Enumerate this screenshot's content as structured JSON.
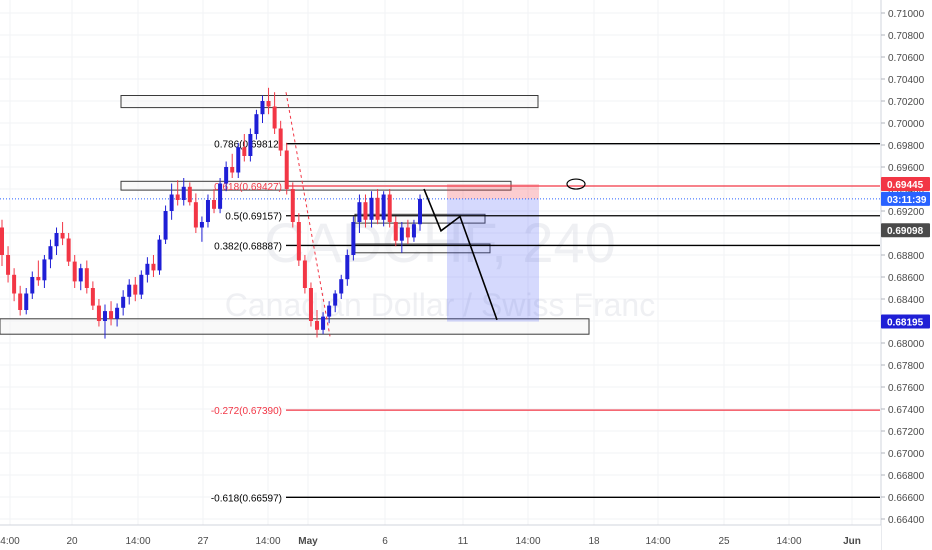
{
  "chart_data": {
    "type": "candlestick",
    "watermark": {
      "symbol": "CADCHF, 240",
      "name": "Canadian Dollar / Swiss Franc"
    },
    "ylim": [
      0.6635,
      0.7125
    ],
    "y_ticks": [
      "0.71000",
      "0.70800",
      "0.70600",
      "0.70400",
      "0.70200",
      "0.70000",
      "0.69800",
      "0.69600",
      "0.69400",
      "0.69200",
      "0.69000",
      "0.68800",
      "0.68600",
      "0.68400",
      "0.68200",
      "0.68000",
      "0.67800",
      "0.67600",
      "0.67400",
      "0.67200",
      "0.67000",
      "0.66800",
      "0.66600",
      "0.66400"
    ],
    "x_ticks": [
      "4:00",
      "20",
      "14:00",
      "27",
      "14:00",
      "May",
      "6",
      "11",
      "14:00",
      "18",
      "14:00",
      "25",
      "14:00",
      "Jun"
    ],
    "price_labels": [
      {
        "text": "0.69445",
        "value": 0.69445,
        "color": "#f23645"
      },
      {
        "text": "03:11:39",
        "value": 0.6931,
        "color": "#2962ff"
      },
      {
        "text": "0.69098",
        "value": 0.69098,
        "color": "#4a4a4a"
      },
      {
        "text": "0.68195",
        "value": 0.68195,
        "color": "#1f1fd6"
      }
    ],
    "fib_levels": [
      {
        "label": "0.786(0.69812)",
        "value": 0.69812,
        "color": "#000000"
      },
      {
        "label": "0.618(0.69427)",
        "value": 0.69427,
        "color": "#f23645"
      },
      {
        "label": "0.5(0.69157)",
        "value": 0.69157,
        "color": "#000000"
      },
      {
        "label": "0.382(0.68887)",
        "value": 0.68887,
        "color": "#000000"
      },
      {
        "label": "-0.272(0.67390)",
        "value": 0.6739,
        "color": "#f23645"
      },
      {
        "label": "-0.618(0.66597)",
        "value": 0.66597,
        "color": "#000000"
      }
    ],
    "zones": [
      {
        "name": "resistance-top",
        "y1": 0.7025,
        "y2": 0.7014
      },
      {
        "name": "resistance-mid",
        "y1": 0.6947,
        "y2": 0.6939
      },
      {
        "name": "range-upper",
        "y1": 0.6917,
        "y2": 0.6909
      },
      {
        "name": "range-lower",
        "y1": 0.689,
        "y2": 0.6882
      },
      {
        "name": "support",
        "y1": 0.6822,
        "y2": 0.6808
      }
    ],
    "current_price": 0.6931,
    "target_price": 0.68195,
    "stop_price": 0.69445,
    "candles_bear_color": "#f23645",
    "candles_bull_color": "#1f1fd6",
    "candles": [
      [
        0.6905,
        0.6912,
        0.687,
        0.688
      ],
      [
        0.688,
        0.6888,
        0.6855,
        0.6862
      ],
      [
        0.6862,
        0.6868,
        0.6838,
        0.6845
      ],
      [
        0.6845,
        0.6852,
        0.6825,
        0.683
      ],
      [
        0.683,
        0.685,
        0.6826,
        0.6845
      ],
      [
        0.6845,
        0.6865,
        0.684,
        0.686
      ],
      [
        0.686,
        0.6875,
        0.6852,
        0.6857
      ],
      [
        0.6857,
        0.688,
        0.685,
        0.6876
      ],
      [
        0.6876,
        0.6894,
        0.6868,
        0.6888
      ],
      [
        0.6888,
        0.6905,
        0.688,
        0.69
      ],
      [
        0.69,
        0.691,
        0.6889,
        0.6895
      ],
      [
        0.6895,
        0.69,
        0.687,
        0.6874
      ],
      [
        0.6874,
        0.688,
        0.685,
        0.6856
      ],
      [
        0.6856,
        0.6872,
        0.6848,
        0.6868
      ],
      [
        0.6868,
        0.6875,
        0.6845,
        0.685
      ],
      [
        0.685,
        0.6856,
        0.683,
        0.6834
      ],
      [
        0.6834,
        0.684,
        0.6815,
        0.682
      ],
      [
        0.682,
        0.6835,
        0.6804,
        0.6829
      ],
      [
        0.6829,
        0.6838,
        0.6816,
        0.6822
      ],
      [
        0.6822,
        0.6836,
        0.6815,
        0.6832
      ],
      [
        0.6832,
        0.6848,
        0.6825,
        0.6842
      ],
      [
        0.6842,
        0.6858,
        0.6835,
        0.6853
      ],
      [
        0.6853,
        0.686,
        0.6838,
        0.6844
      ],
      [
        0.6844,
        0.6866,
        0.684,
        0.6862
      ],
      [
        0.6862,
        0.6878,
        0.6855,
        0.6872
      ],
      [
        0.6872,
        0.688,
        0.686,
        0.6866
      ],
      [
        0.6866,
        0.6898,
        0.6862,
        0.6894
      ],
      [
        0.6894,
        0.6925,
        0.689,
        0.692
      ],
      [
        0.692,
        0.6945,
        0.6912,
        0.6935
      ],
      [
        0.6935,
        0.6948,
        0.6925,
        0.693
      ],
      [
        0.693,
        0.695,
        0.6925,
        0.6942
      ],
      [
        0.6942,
        0.6946,
        0.6925,
        0.6928
      ],
      [
        0.6928,
        0.6936,
        0.69,
        0.6905
      ],
      [
        0.6905,
        0.6915,
        0.6892,
        0.691
      ],
      [
        0.691,
        0.6935,
        0.6905,
        0.693
      ],
      [
        0.693,
        0.694,
        0.6918,
        0.6922
      ],
      [
        0.6922,
        0.695,
        0.6918,
        0.6945
      ],
      [
        0.6945,
        0.6965,
        0.6938,
        0.696
      ],
      [
        0.696,
        0.6972,
        0.695,
        0.6955
      ],
      [
        0.6955,
        0.6982,
        0.695,
        0.6978
      ],
      [
        0.6978,
        0.699,
        0.6965,
        0.697
      ],
      [
        0.697,
        0.6995,
        0.6965,
        0.699
      ],
      [
        0.699,
        0.7012,
        0.6985,
        0.7008
      ],
      [
        0.7008,
        0.7025,
        0.7,
        0.702
      ],
      [
        0.702,
        0.7032,
        0.7008,
        0.7015
      ],
      [
        0.7015,
        0.7028,
        0.699,
        0.6995
      ],
      [
        0.6995,
        0.7002,
        0.697,
        0.6975
      ],
      [
        0.6975,
        0.6982,
        0.6935,
        0.694
      ],
      [
        0.694,
        0.6946,
        0.6905,
        0.691
      ],
      [
        0.691,
        0.6918,
        0.687,
        0.6875
      ],
      [
        0.6875,
        0.688,
        0.6845,
        0.685
      ],
      [
        0.685,
        0.6855,
        0.6815,
        0.682
      ],
      [
        0.682,
        0.683,
        0.6805,
        0.6812
      ],
      [
        0.6812,
        0.6828,
        0.6808,
        0.6824
      ],
      [
        0.6824,
        0.6838,
        0.6818,
        0.6834
      ],
      [
        0.6834,
        0.6848,
        0.6828,
        0.6845
      ],
      [
        0.6845,
        0.6862,
        0.684,
        0.6858
      ],
      [
        0.6858,
        0.6885,
        0.6852,
        0.688
      ],
      [
        0.688,
        0.6915,
        0.6875,
        0.691
      ],
      [
        0.691,
        0.6935,
        0.69,
        0.6928
      ],
      [
        0.6928,
        0.6935,
        0.6905,
        0.6912
      ],
      [
        0.6912,
        0.6938,
        0.6905,
        0.6932
      ],
      [
        0.6932,
        0.694,
        0.6908,
        0.6912
      ],
      [
        0.6912,
        0.6938,
        0.6906,
        0.6935
      ],
      [
        0.6935,
        0.694,
        0.6905,
        0.691
      ],
      [
        0.691,
        0.6915,
        0.6888,
        0.6893
      ],
      [
        0.6893,
        0.691,
        0.6882,
        0.6905
      ],
      [
        0.6905,
        0.6912,
        0.689,
        0.6896
      ],
      [
        0.6896,
        0.6912,
        0.6892,
        0.6908
      ],
      [
        0.6908,
        0.6935,
        0.6902,
        0.6931
      ]
    ]
  }
}
